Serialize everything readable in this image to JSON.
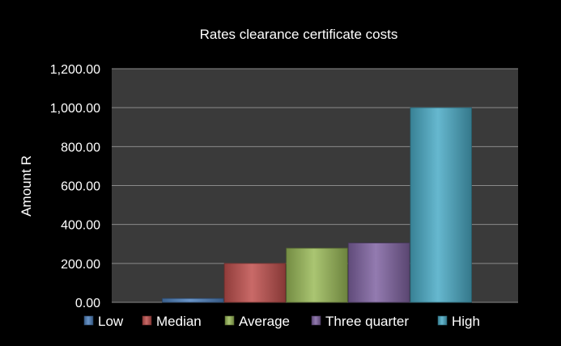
{
  "chart_data": {
    "type": "bar",
    "title": "Rates clearance certificate costs",
    "xlabel": "",
    "ylabel": "Amount R",
    "ylim": [
      0,
      1200
    ],
    "yticks": [
      "0.00",
      "200.00",
      "400.00",
      "600.00",
      "800.00",
      "1,000.00",
      "1,200.00"
    ],
    "grid": true,
    "legend_position": "bottom",
    "plot_background": "#3a3a3a",
    "series": [
      {
        "name": "Low",
        "value": 20,
        "color": "#4f81bd"
      },
      {
        "name": "Median",
        "value": 200,
        "color": "#c0504d"
      },
      {
        "name": "Average",
        "value": 278,
        "color": "#9bbb59"
      },
      {
        "name": "Three quarter",
        "value": 305,
        "color": "#8064a2"
      },
      {
        "name": "High",
        "value": 1000,
        "color": "#4bacc6"
      }
    ]
  }
}
